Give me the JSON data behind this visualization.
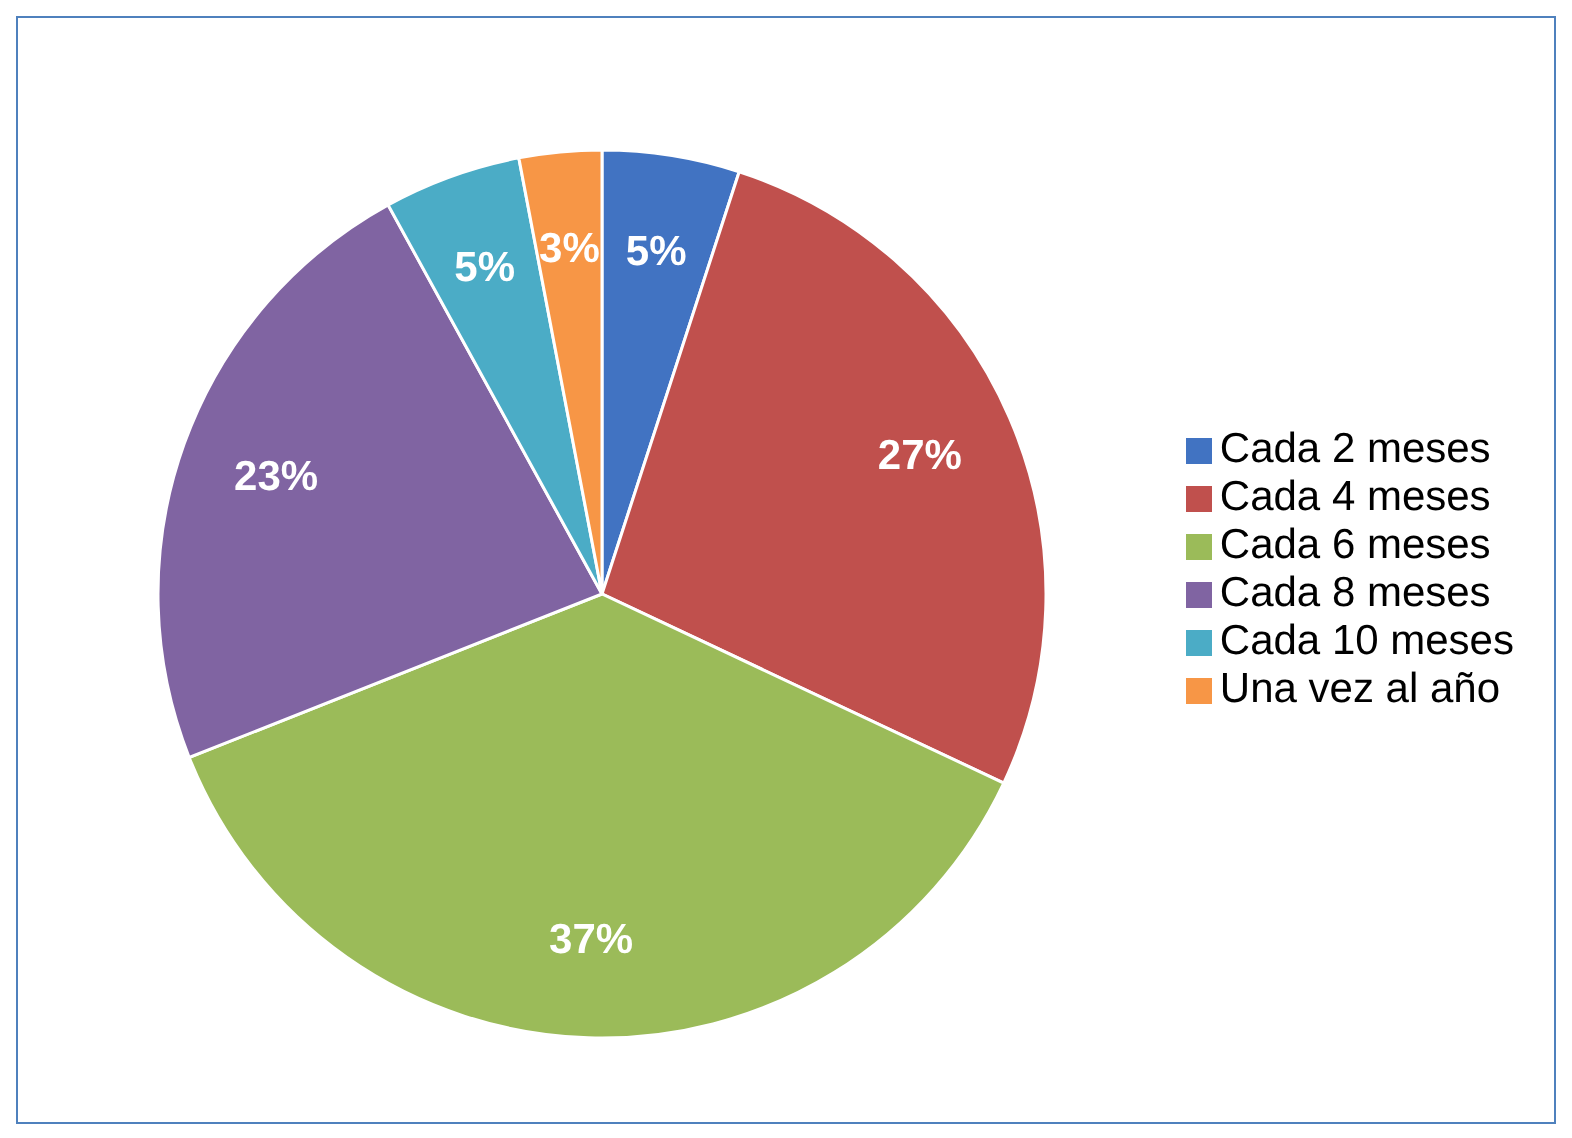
{
  "chart_data": {
    "type": "pie",
    "categories": [
      "Cada 2 meses",
      "Cada 4 meses",
      "Cada 6 meses",
      "Cada 8 meses",
      "Cada 10 meses",
      "Una vez al año"
    ],
    "values": [
      5,
      27,
      37,
      23,
      5,
      3
    ],
    "colors": [
      "#4173c2",
      "#c0504d",
      "#9bbb59",
      "#8064a2",
      "#4bacc6",
      "#f79646"
    ],
    "value_labels": [
      "5%",
      "27%",
      "37%",
      "23%",
      "5%",
      "3%"
    ],
    "legend": "right"
  }
}
